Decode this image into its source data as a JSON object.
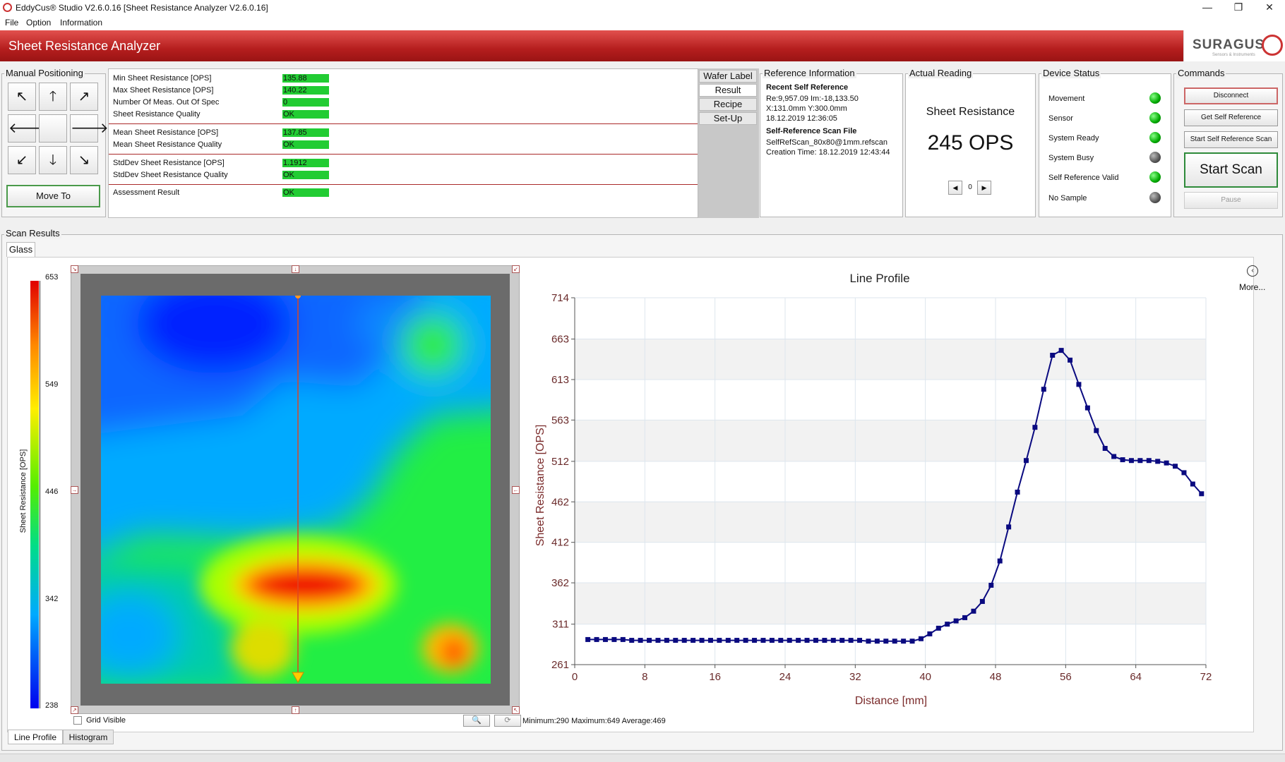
{
  "window": {
    "title": "EddyCus® Studio V2.6.0.16 [Sheet Resistance Analyzer V2.6.0.16]",
    "minimize": "—",
    "maximize": "❐",
    "close": "✕"
  },
  "menu": [
    "File",
    "Option",
    "Information"
  ],
  "header": {
    "title": "Sheet Resistance Analyzer"
  },
  "logo": {
    "text": "SURAGUS",
    "sub": "Sensors & Instruments"
  },
  "manual": {
    "label": "Manual Positioning",
    "arrows": [
      "↖",
      "🡑",
      "↗",
      "🡐",
      "",
      "🡒",
      "↙",
      "🡓",
      "↘"
    ],
    "move_to": "Move To"
  },
  "results": {
    "rows": [
      {
        "label": "Min Sheet Resistance [OPS]",
        "value": "135.88"
      },
      {
        "label": "Max Sheet Resistance [OPS]",
        "value": "140.22"
      },
      {
        "label": "Number Of Meas. Out Of Spec",
        "value": "0"
      },
      {
        "label": "Sheet Resistance Quality",
        "value": "OK"
      },
      {
        "label": "Mean Sheet Resistance [OPS]",
        "value": "137.85"
      },
      {
        "label": "Mean Sheet Resistance Quality",
        "value": "OK"
      },
      {
        "label": "StdDev Sheet Resistance [OPS]",
        "value": "1.1912"
      },
      {
        "label": "StdDev Sheet Resistance Quality",
        "value": "OK"
      },
      {
        "label": "Assessment Result",
        "value": "OK"
      }
    ],
    "tabs": [
      "Wafer Label",
      "Result",
      "Recipe",
      "Set-Up"
    ]
  },
  "reference": {
    "label": "Reference Information",
    "recent_title": "Recent Self Reference",
    "recent_lines": [
      "Re:9,957.09 Im:-18,133.50",
      "X:131.0mm Y:300.0mm",
      "18.12.2019 12:36:05"
    ],
    "scan_title": "Self-Reference Scan File",
    "scan_lines": [
      "SelfRefScan_80x80@1mm.refscan",
      "Creation Time: 18.12.2019 12:43:44"
    ]
  },
  "actual": {
    "label": "Actual Reading",
    "title": "Sheet Resistance",
    "value": "245 OPS",
    "nav_value": "0"
  },
  "device": {
    "label": "Device Status",
    "items": [
      {
        "label": "Movement",
        "state": "on"
      },
      {
        "label": "Sensor",
        "state": "on"
      },
      {
        "label": "System Ready",
        "state": "on"
      },
      {
        "label": "System Busy",
        "state": "off"
      },
      {
        "label": "Self Reference Valid",
        "state": "on"
      },
      {
        "label": "No Sample",
        "state": "off"
      }
    ]
  },
  "commands": {
    "label": "Commands",
    "disconnect": "Disconnect",
    "get_ref": "Get Self Reference",
    "start_ref": "Start Self Reference Scan",
    "start_scan": "Start Scan",
    "pause": "Pause"
  },
  "scan": {
    "label": "Scan Results",
    "tab": "Glass",
    "grid_visible": "Grid Visible",
    "stats": "Minimum:290  Maximum:649  Average:469",
    "bottom_tabs": [
      "Line Profile",
      "Histogram"
    ],
    "more": "More..."
  },
  "colorbar": {
    "label": "Sheet Resistance [OPS]",
    "ticks": [
      "653",
      "549",
      "446",
      "342",
      "238"
    ]
  },
  "chart_data": {
    "type": "line",
    "title": "Line Profile",
    "xlabel": "Distance [mm]",
    "ylabel": "Sheet Resistance [OPS]",
    "xlim": [
      0,
      72
    ],
    "ylim": [
      261,
      714
    ],
    "xticks": [
      0,
      8,
      16,
      24,
      32,
      40,
      48,
      56,
      64,
      72
    ],
    "yticks": [
      261,
      311,
      362,
      412,
      462,
      512,
      563,
      613,
      663,
      714
    ],
    "series": [
      {
        "color": "#0a0a80",
        "x": [
          1.5,
          2.5,
          3.5,
          4.5,
          5.5,
          6.5,
          7.5,
          8.5,
          9.5,
          10.5,
          11.5,
          12.5,
          13.5,
          14.5,
          15.5,
          16.5,
          17.5,
          18.5,
          19.5,
          20.5,
          21.5,
          22.5,
          23.5,
          24.5,
          25.5,
          26.5,
          27.5,
          28.5,
          29.5,
          30.5,
          31.5,
          32.5,
          33.5,
          34.5,
          35.5,
          36.5,
          37.5,
          38.5,
          39.5,
          40.5,
          41.5,
          42.5,
          43.5,
          44.5,
          45.5,
          46.5,
          47.5,
          48.5,
          49.5,
          50.5,
          51.5,
          52.5,
          53.5,
          54.5,
          55.5,
          56.5,
          57.5,
          58.5,
          59.5,
          60.5,
          61.5,
          62.5,
          63.5,
          64.5,
          65.5,
          66.5,
          67.5,
          68.5,
          69.5,
          70.5,
          71.5
        ],
        "y": [
          292,
          292,
          292,
          292,
          292,
          291,
          291,
          291,
          291,
          291,
          291,
          291,
          291,
          291,
          291,
          291,
          291,
          291,
          291,
          291,
          291,
          291,
          291,
          291,
          291,
          291,
          291,
          291,
          291,
          291,
          291,
          291,
          290,
          290,
          290,
          290,
          290,
          290,
          293,
          299,
          306,
          311,
          315,
          319,
          327,
          339,
          359,
          389,
          431,
          474,
          513,
          554,
          601,
          643,
          649,
          637,
          607,
          578,
          550,
          528,
          518,
          514,
          513,
          513,
          513,
          512,
          510,
          506,
          498,
          484,
          472
        ]
      }
    ]
  }
}
